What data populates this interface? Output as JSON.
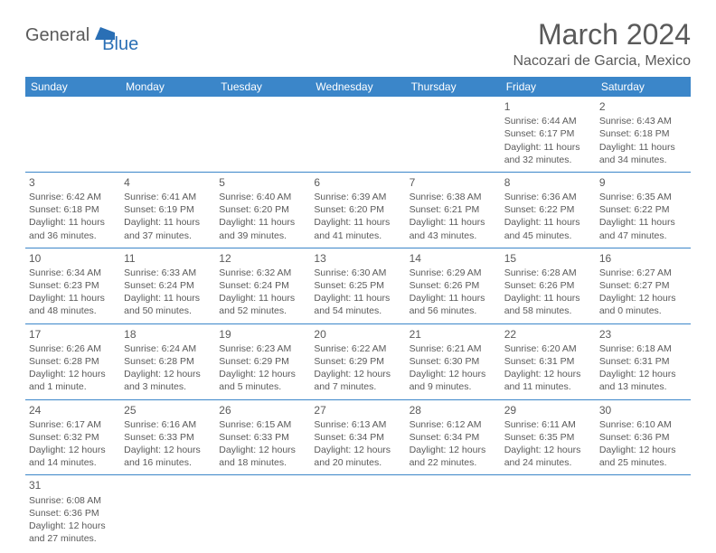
{
  "logo": {
    "text1": "General",
    "text2": "Blue"
  },
  "title": "March 2024",
  "location": "Nacozari de Garcia, Mexico",
  "colors": {
    "header_bg": "#3b86c9",
    "header_text": "#ffffff",
    "cell_border": "#3b86c9",
    "text": "#5a5a5a",
    "logo_blue": "#2a6fb5"
  },
  "weekdays": [
    "Sunday",
    "Monday",
    "Tuesday",
    "Wednesday",
    "Thursday",
    "Friday",
    "Saturday"
  ],
  "weeks": [
    [
      null,
      null,
      null,
      null,
      null,
      {
        "d": "1",
        "sr": "6:44 AM",
        "ss": "6:17 PM",
        "dl": "11 hours and 32 minutes."
      },
      {
        "d": "2",
        "sr": "6:43 AM",
        "ss": "6:18 PM",
        "dl": "11 hours and 34 minutes."
      }
    ],
    [
      {
        "d": "3",
        "sr": "6:42 AM",
        "ss": "6:18 PM",
        "dl": "11 hours and 36 minutes."
      },
      {
        "d": "4",
        "sr": "6:41 AM",
        "ss": "6:19 PM",
        "dl": "11 hours and 37 minutes."
      },
      {
        "d": "5",
        "sr": "6:40 AM",
        "ss": "6:20 PM",
        "dl": "11 hours and 39 minutes."
      },
      {
        "d": "6",
        "sr": "6:39 AM",
        "ss": "6:20 PM",
        "dl": "11 hours and 41 minutes."
      },
      {
        "d": "7",
        "sr": "6:38 AM",
        "ss": "6:21 PM",
        "dl": "11 hours and 43 minutes."
      },
      {
        "d": "8",
        "sr": "6:36 AM",
        "ss": "6:22 PM",
        "dl": "11 hours and 45 minutes."
      },
      {
        "d": "9",
        "sr": "6:35 AM",
        "ss": "6:22 PM",
        "dl": "11 hours and 47 minutes."
      }
    ],
    [
      {
        "d": "10",
        "sr": "6:34 AM",
        "ss": "6:23 PM",
        "dl": "11 hours and 48 minutes."
      },
      {
        "d": "11",
        "sr": "6:33 AM",
        "ss": "6:24 PM",
        "dl": "11 hours and 50 minutes."
      },
      {
        "d": "12",
        "sr": "6:32 AM",
        "ss": "6:24 PM",
        "dl": "11 hours and 52 minutes."
      },
      {
        "d": "13",
        "sr": "6:30 AM",
        "ss": "6:25 PM",
        "dl": "11 hours and 54 minutes."
      },
      {
        "d": "14",
        "sr": "6:29 AM",
        "ss": "6:26 PM",
        "dl": "11 hours and 56 minutes."
      },
      {
        "d": "15",
        "sr": "6:28 AM",
        "ss": "6:26 PM",
        "dl": "11 hours and 58 minutes."
      },
      {
        "d": "16",
        "sr": "6:27 AM",
        "ss": "6:27 PM",
        "dl": "12 hours and 0 minutes."
      }
    ],
    [
      {
        "d": "17",
        "sr": "6:26 AM",
        "ss": "6:28 PM",
        "dl": "12 hours and 1 minute."
      },
      {
        "d": "18",
        "sr": "6:24 AM",
        "ss": "6:28 PM",
        "dl": "12 hours and 3 minutes."
      },
      {
        "d": "19",
        "sr": "6:23 AM",
        "ss": "6:29 PM",
        "dl": "12 hours and 5 minutes."
      },
      {
        "d": "20",
        "sr": "6:22 AM",
        "ss": "6:29 PM",
        "dl": "12 hours and 7 minutes."
      },
      {
        "d": "21",
        "sr": "6:21 AM",
        "ss": "6:30 PM",
        "dl": "12 hours and 9 minutes."
      },
      {
        "d": "22",
        "sr": "6:20 AM",
        "ss": "6:31 PM",
        "dl": "12 hours and 11 minutes."
      },
      {
        "d": "23",
        "sr": "6:18 AM",
        "ss": "6:31 PM",
        "dl": "12 hours and 13 minutes."
      }
    ],
    [
      {
        "d": "24",
        "sr": "6:17 AM",
        "ss": "6:32 PM",
        "dl": "12 hours and 14 minutes."
      },
      {
        "d": "25",
        "sr": "6:16 AM",
        "ss": "6:33 PM",
        "dl": "12 hours and 16 minutes."
      },
      {
        "d": "26",
        "sr": "6:15 AM",
        "ss": "6:33 PM",
        "dl": "12 hours and 18 minutes."
      },
      {
        "d": "27",
        "sr": "6:13 AM",
        "ss": "6:34 PM",
        "dl": "12 hours and 20 minutes."
      },
      {
        "d": "28",
        "sr": "6:12 AM",
        "ss": "6:34 PM",
        "dl": "12 hours and 22 minutes."
      },
      {
        "d": "29",
        "sr": "6:11 AM",
        "ss": "6:35 PM",
        "dl": "12 hours and 24 minutes."
      },
      {
        "d": "30",
        "sr": "6:10 AM",
        "ss": "6:36 PM",
        "dl": "12 hours and 25 minutes."
      }
    ],
    [
      {
        "d": "31",
        "sr": "6:08 AM",
        "ss": "6:36 PM",
        "dl": "12 hours and 27 minutes."
      },
      null,
      null,
      null,
      null,
      null,
      null
    ]
  ],
  "labels": {
    "sunrise": "Sunrise:",
    "sunset": "Sunset:",
    "daylight": "Daylight:"
  }
}
